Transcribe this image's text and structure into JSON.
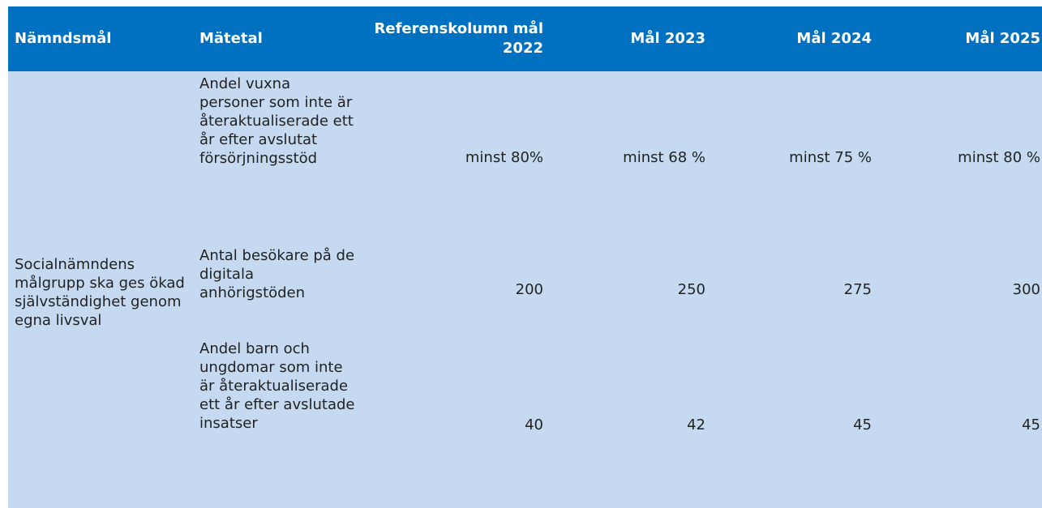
{
  "table": {
    "header": [
      "Nämndsmål",
      "Mätetal",
      "Referenskolumn mål 2022",
      "Mål 2023",
      "Mål 2024",
      "Mål 2025"
    ],
    "goal": "Socialnämndens målgrupp ska ges ökad självständighet genom egna livsval",
    "rows": [
      [
        "Andel vuxna personer som inte är återaktualiserade ett år efter avslutat försörjningsstöd",
        "minst 80%",
        "minst 68 %",
        "minst 75 %",
        "minst 80 %"
      ],
      [
        "Antal besökare på de digitala anhörigstöden",
        200,
        250,
        275,
        300
      ],
      [
        "Andel barn och ungdomar som inte är återaktualiserade ett år efter avslutade insatser",
        40,
        42,
        45,
        45
      ]
    ]
  }
}
